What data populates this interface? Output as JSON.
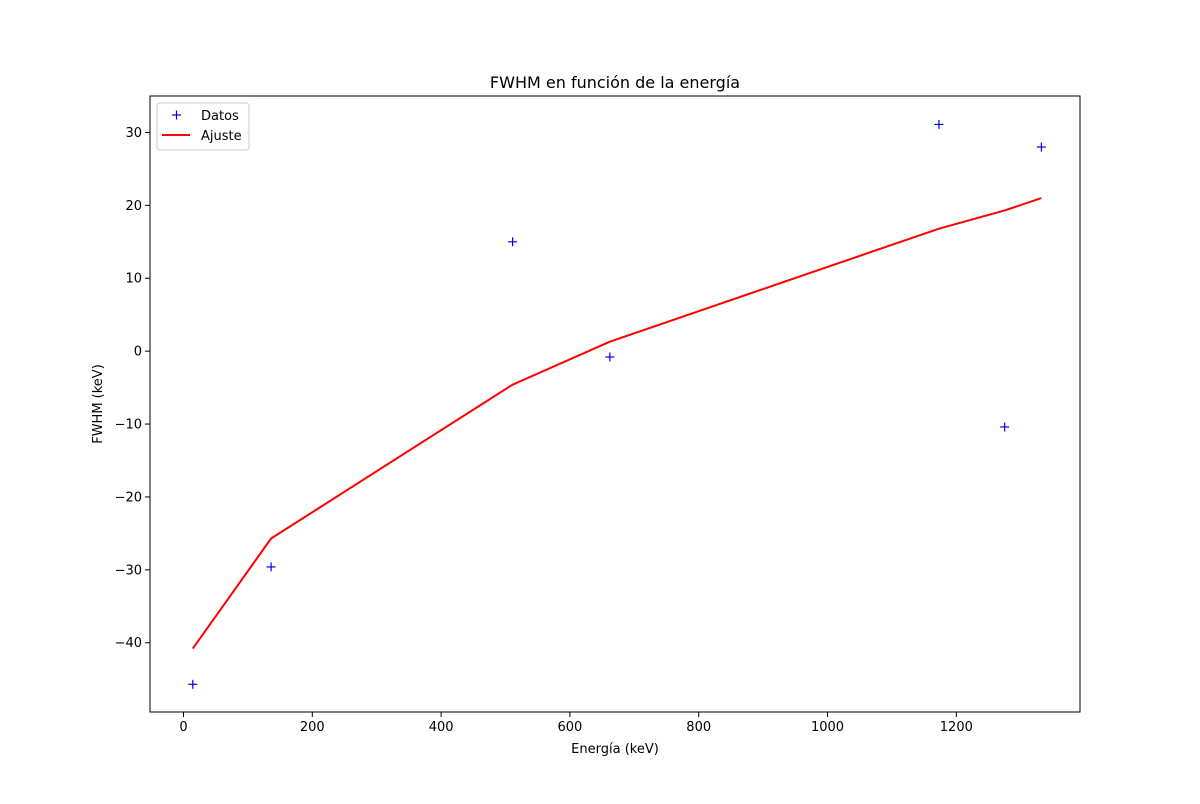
{
  "chart_data": {
    "type": "scatter",
    "title": "FWHM en función de la energía",
    "xlabel": "Energía (keV)",
    "ylabel": "FWHM (keV)",
    "xlim": [
      -52,
      1392
    ],
    "ylim": [
      -49.5,
      35
    ],
    "xticks": [
      0,
      200,
      400,
      600,
      800,
      1000,
      1200
    ],
    "yticks": [
      -40,
      -30,
      -20,
      -10,
      0,
      10,
      20,
      30
    ],
    "grid": false,
    "legend_position": "top-left",
    "series": [
      {
        "name": "Datos",
        "kind": "scatter",
        "marker": "plus",
        "color": "#0000ff",
        "x": [
          14.4,
          136,
          511,
          662,
          1173,
          1275,
          1332
        ],
        "y": [
          -45.7,
          -29.6,
          15.0,
          -0.8,
          31.1,
          -10.4,
          28.0
        ]
      },
      {
        "name": "Ajuste",
        "kind": "line",
        "color": "#ff0000",
        "x": [
          14.4,
          136,
          511,
          662,
          1173,
          1275,
          1332
        ],
        "y": [
          -40.8,
          -25.7,
          -4.6,
          1.3,
          16.8,
          19.3,
          21.0
        ]
      }
    ]
  }
}
